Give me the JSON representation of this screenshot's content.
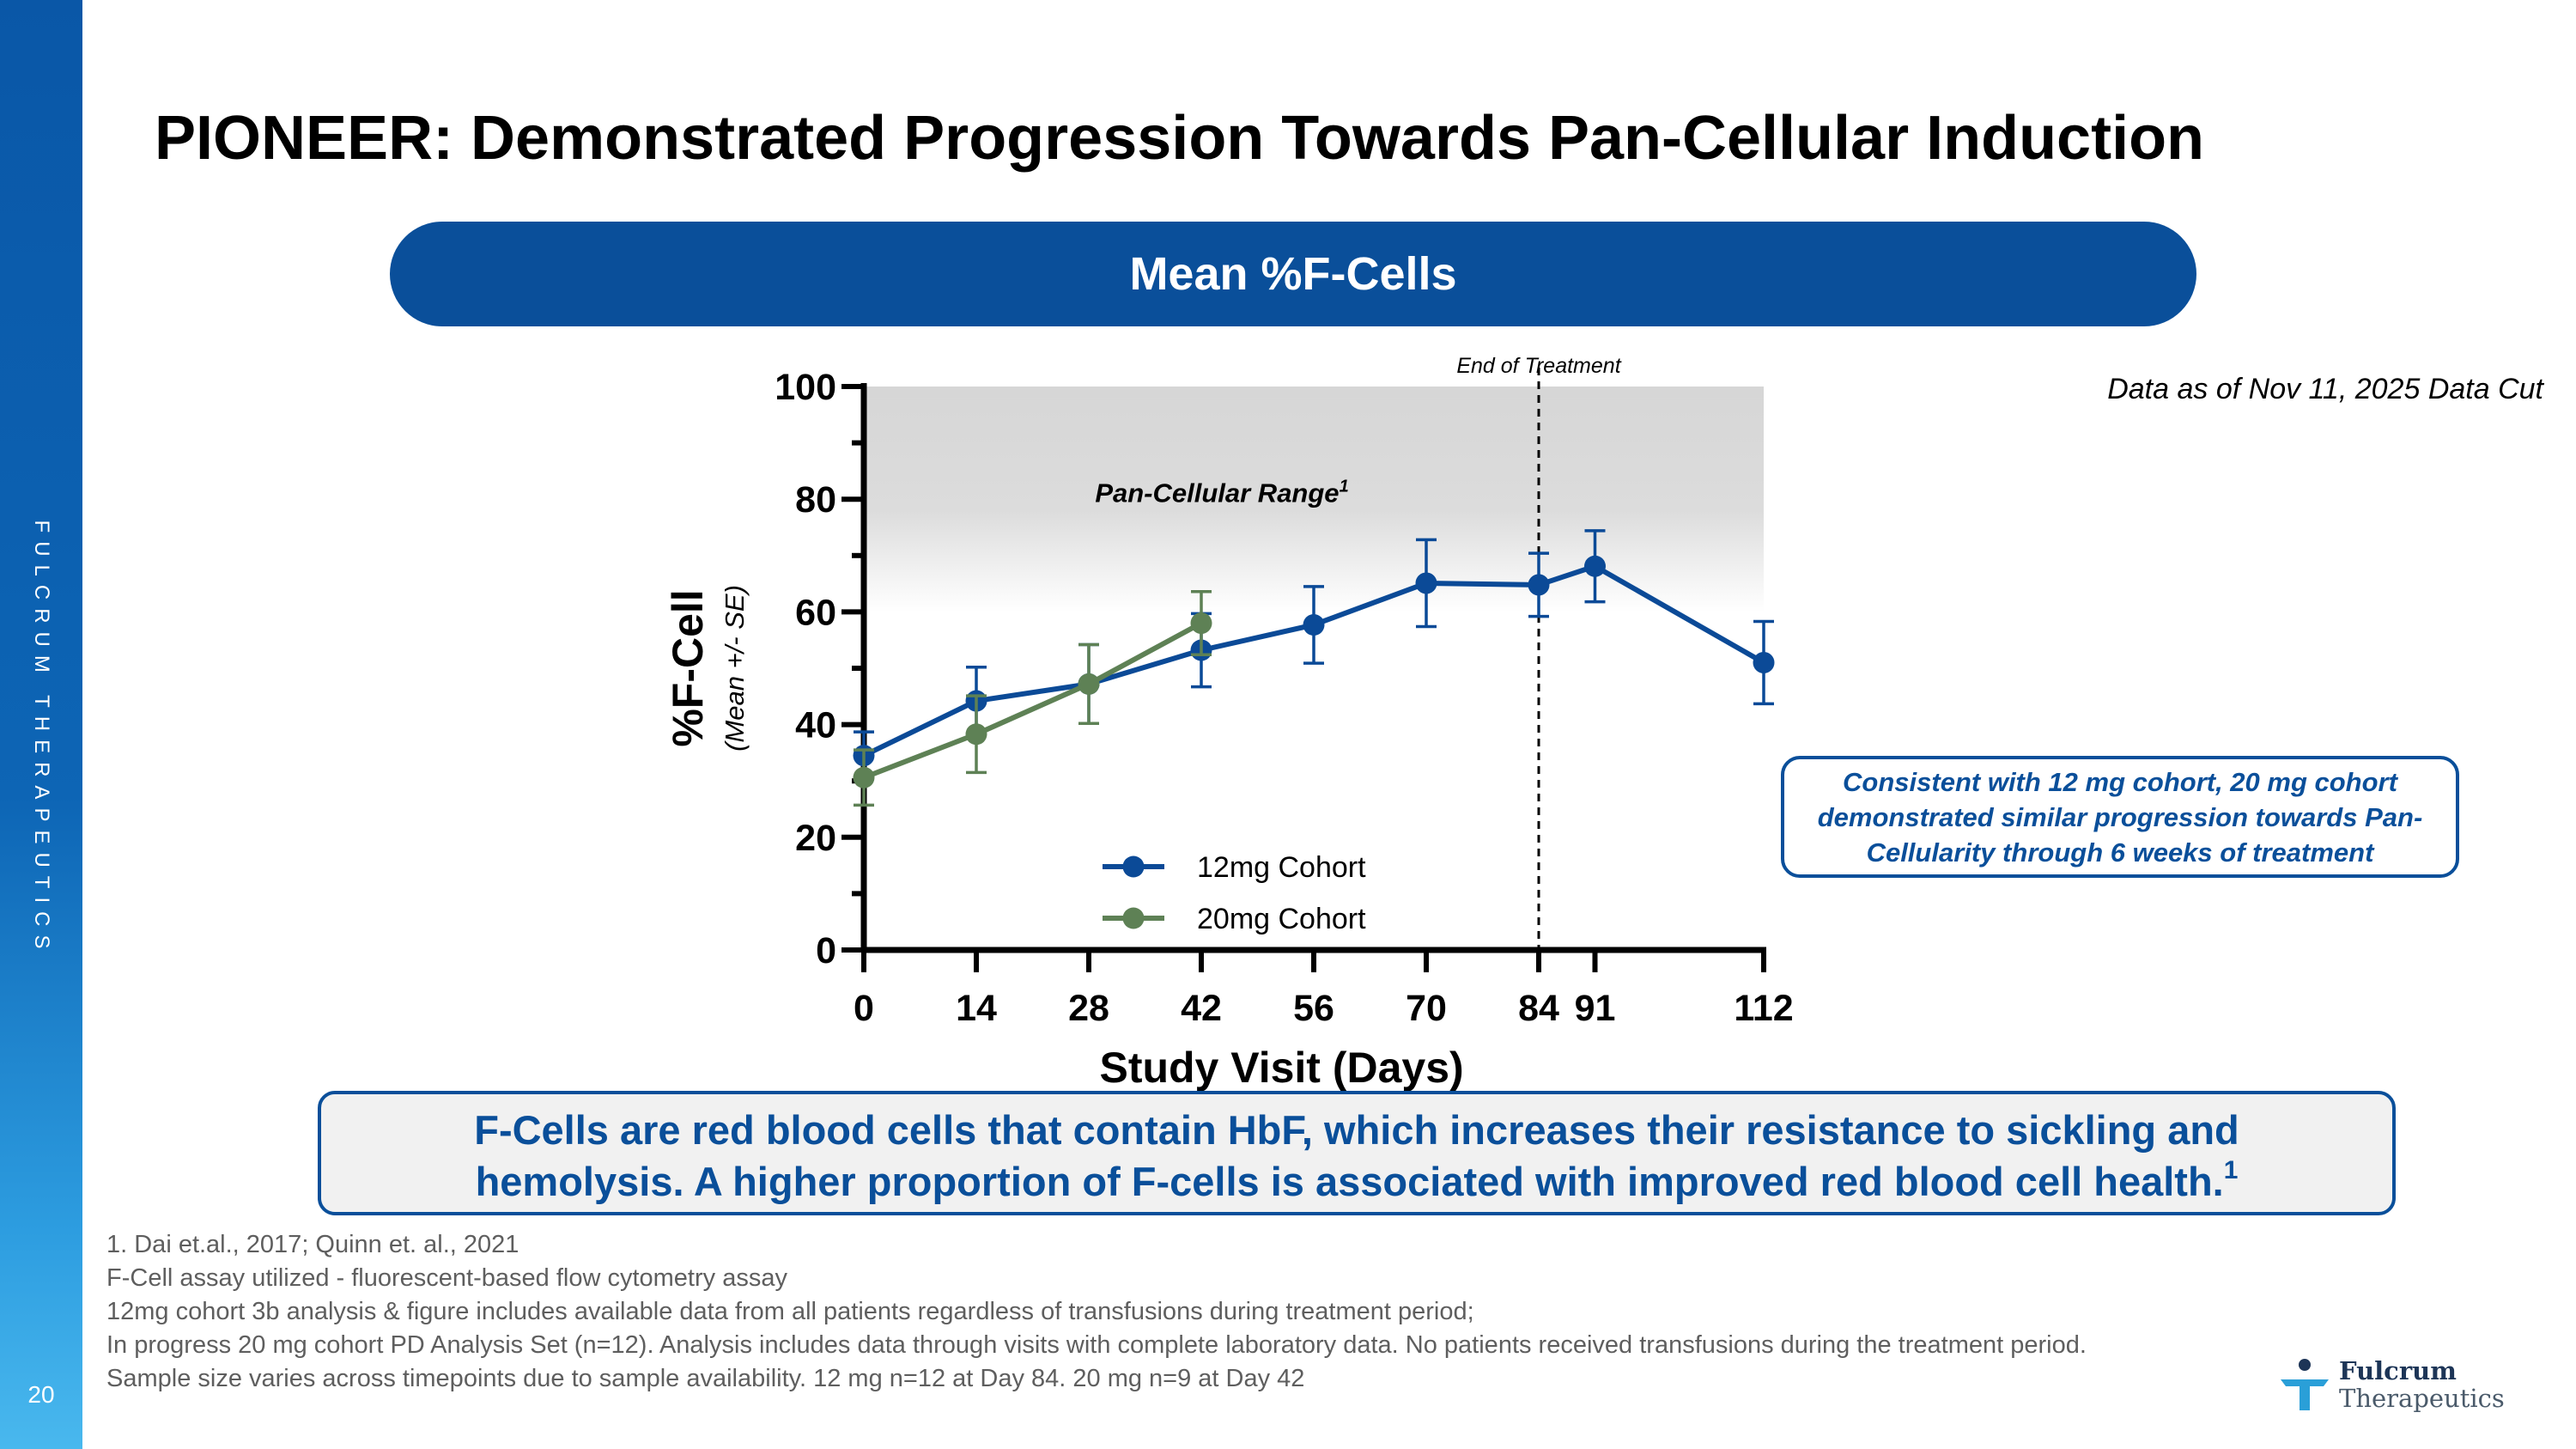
{
  "slide": {
    "title": "PIONEER: Demonstrated Progression Towards Pan-Cellular Induction",
    "banner": "Mean %F-Cells",
    "sidebar_brand": "FULCRUM THERAPEUTICS",
    "page_number": "20",
    "data_cut": "Data as of Nov 11, 2025 Data Cut",
    "callout": "Consistent with 12 mg cohort, 20 mg cohort demonstrated similar progression towards Pan-Cellularity through 6 weeks of treatment",
    "fcell_box": {
      "line1": "F-Cells are red blood cells that contain HbF, which increases their resistance to sickling and",
      "line2": "hemolysis. A higher proportion of F-cells is associated with improved red blood cell health.",
      "superscript": "1"
    },
    "footnotes": [
      "1. Dai et.al., 2017; Quinn et. al., 2021",
      "F-Cell assay utilized - fluorescent-based flow cytometry assay",
      "12mg cohort 3b analysis & figure includes available data from all patients regardless of transfusions during treatment period;",
      "In progress 20 mg cohort PD Analysis Set (n=12). Analysis includes data through visits with complete laboratory data. No patients received transfusions during the treatment period.",
      "Sample size varies across timepoints due to sample availability. 12 mg n=12 at Day 84. 20 mg n=9 at Day 42"
    ],
    "logo": {
      "name": "Fulcrum",
      "sub": "Therapeutics",
      "icon": "fulcrum-logo-icon"
    }
  },
  "colors": {
    "brand_blue": "#0a4f9a",
    "series_12mg": "#0b4a97",
    "series_20mg": "#5e8155"
  },
  "chart_data": {
    "type": "line",
    "xlabel": "Study Visit (Days)",
    "ylabel": "%F-Cell",
    "ylabel_sub": "(Mean +/- SE)",
    "xlim": [
      0,
      112
    ],
    "ylim": [
      0,
      100
    ],
    "x_ticks": [
      0,
      14,
      28,
      42,
      56,
      70,
      84,
      91,
      112
    ],
    "y_ticks": [
      0,
      20,
      40,
      60,
      80,
      100
    ],
    "grid": false,
    "legend_position": "bottom-center",
    "region": {
      "label": "Pan-Cellular Range",
      "superscript": "1",
      "y_from": 60,
      "y_to": 100
    },
    "reference_line": {
      "x": 84,
      "label": "End of Treatment"
    },
    "series": [
      {
        "name": "12mg Cohort",
        "x": [
          0,
          14,
          28,
          42,
          56,
          70,
          84,
          91,
          112
        ],
        "y": [
          34.5,
          44.2,
          47.2,
          53.2,
          57.7,
          65.1,
          64.8,
          68.1,
          51.0
        ],
        "err": [
          4.2,
          6.0,
          7.0,
          6.5,
          6.8,
          7.7,
          5.6,
          6.3,
          7.3
        ]
      },
      {
        "name": "20mg Cohort",
        "x": [
          0,
          14,
          28,
          42
        ],
        "y": [
          30.6,
          38.3,
          47.2,
          58.0
        ],
        "err": [
          4.9,
          6.8,
          7.0,
          5.6
        ]
      }
    ]
  }
}
